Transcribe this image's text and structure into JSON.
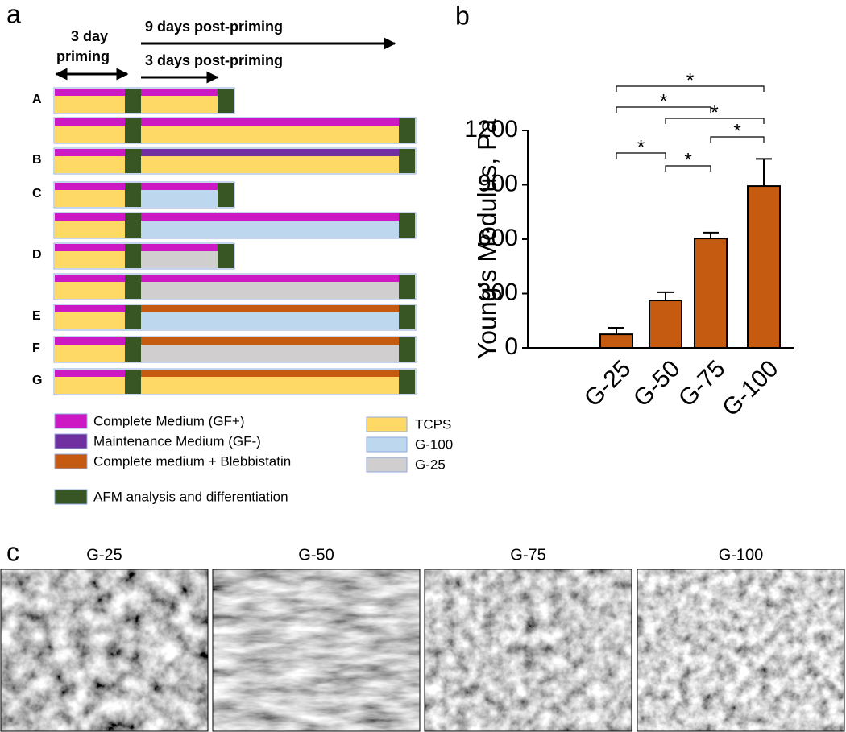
{
  "panel_a": {
    "label": "a",
    "arrow_long": "9 days post-priming",
    "priming": [
      "3 day",
      "priming"
    ],
    "arrow_short": "3 days post-priming",
    "row_labels": [
      "A",
      "B",
      "C",
      "D",
      "E",
      "F",
      "G"
    ],
    "legend": [
      "Complete Medium (GF+)",
      "Maintenance Medium (GF-)",
      "Complete medium + Blebbistatin",
      "AFM analysis and differentiation",
      "TCPS",
      "G-100",
      "G-25"
    ]
  },
  "panel_b_label": "b",
  "chart_data": {
    "type": "bar",
    "categories": [
      "G-25",
      "G-50",
      "G-75",
      "G-100"
    ],
    "values": [
      75,
      262,
      604,
      893
    ],
    "errors": [
      36,
      45,
      32,
      150
    ],
    "color": "#c55a11",
    "ylim": [
      0,
      1200
    ],
    "yticks": [
      0,
      300,
      600,
      900,
      1200
    ],
    "ylabel": "Young's Modulus,  Pa",
    "annotations": [
      "*",
      "*",
      "*",
      "*",
      "*",
      "*"
    ]
  },
  "panel_c": {
    "label": "c",
    "images": [
      "G-25",
      "G-50",
      "G-75",
      "G-100"
    ]
  }
}
